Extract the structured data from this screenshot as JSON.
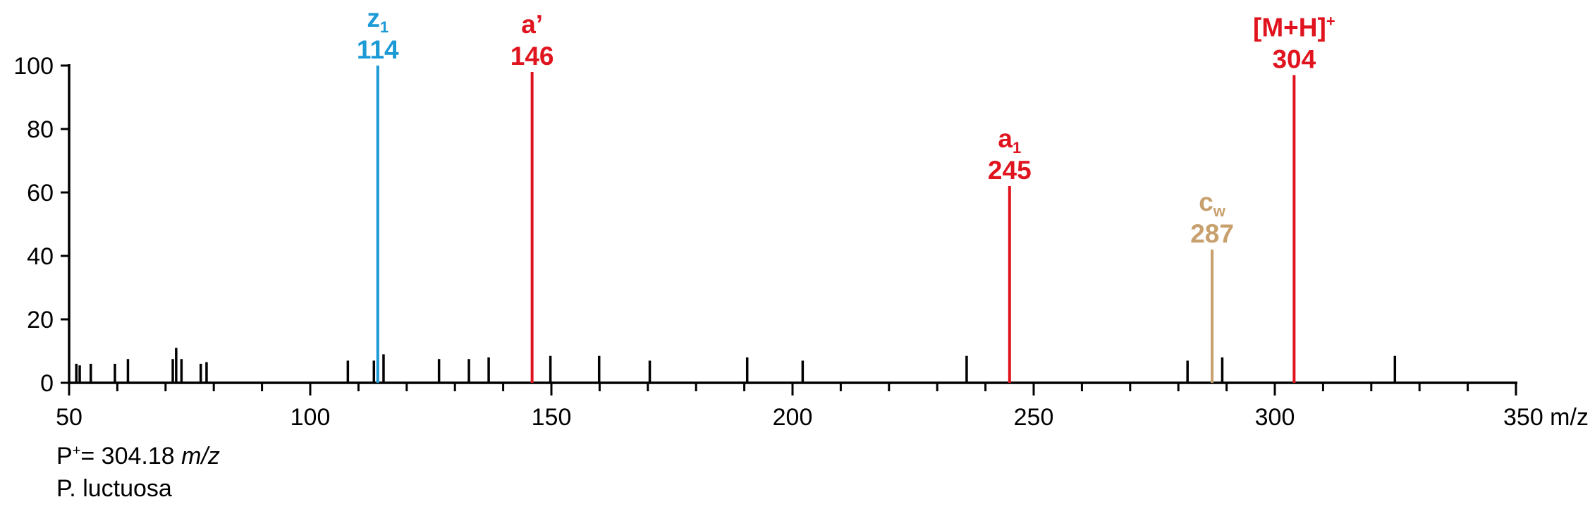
{
  "chart_data": {
    "type": "bar",
    "x_unit": "m/z",
    "xlim": [
      50,
      350
    ],
    "ylim": [
      0,
      100
    ],
    "x_ticks": [
      50,
      100,
      150,
      200,
      250,
      300,
      350
    ],
    "x_tick_labels": [
      "50",
      "100",
      "150",
      "200",
      "250",
      "300",
      "350 m/z"
    ],
    "y_ticks": [
      0,
      20,
      40,
      60,
      80,
      100
    ],
    "colors": {
      "default": "#000000",
      "z": "#1b9ad6",
      "a": "#e0141e",
      "c": "#c8a06e"
    },
    "minor_peaks": [
      {
        "mz": 51.5,
        "i": 6
      },
      {
        "mz": 52.2,
        "i": 5.5
      },
      {
        "mz": 54.5,
        "i": 6
      },
      {
        "mz": 59.5,
        "i": 6
      },
      {
        "mz": 62.2,
        "i": 7.5
      },
      {
        "mz": 71.5,
        "i": 7.5
      },
      {
        "mz": 72.2,
        "i": 11
      },
      {
        "mz": 73.3,
        "i": 7.5
      },
      {
        "mz": 77.3,
        "i": 6
      },
      {
        "mz": 78.5,
        "i": 6.5
      },
      {
        "mz": 107.8,
        "i": 7
      },
      {
        "mz": 113.2,
        "i": 7
      },
      {
        "mz": 115.2,
        "i": 9
      },
      {
        "mz": 126.7,
        "i": 7.5
      },
      {
        "mz": 132.9,
        "i": 7.5
      },
      {
        "mz": 137.0,
        "i": 8
      },
      {
        "mz": 149.8,
        "i": 8.5
      },
      {
        "mz": 159.9,
        "i": 8.5
      },
      {
        "mz": 170.4,
        "i": 7
      },
      {
        "mz": 190.6,
        "i": 8
      },
      {
        "mz": 202.1,
        "i": 7
      },
      {
        "mz": 236.1,
        "i": 8.5
      },
      {
        "mz": 281.9,
        "i": 7
      },
      {
        "mz": 289.1,
        "i": 8
      },
      {
        "mz": 324.9,
        "i": 8.5
      }
    ],
    "labeled_peaks": [
      {
        "mz": 114,
        "i": 100,
        "label": "z",
        "sub": "1",
        "sup": "",
        "value_label": "114",
        "color_key": "z"
      },
      {
        "mz": 146,
        "i": 98,
        "label": "a’",
        "sub": "",
        "sup": "",
        "value_label": "146",
        "color_key": "a"
      },
      {
        "mz": 245,
        "i": 62,
        "label": "a",
        "sub": "1",
        "sup": "",
        "value_label": "245",
        "color_key": "a"
      },
      {
        "mz": 287,
        "i": 42,
        "label": "c",
        "sub": "w",
        "sup": "",
        "value_label": "287",
        "color_key": "c"
      },
      {
        "mz": 304,
        "i": 97,
        "label": "[M+H]",
        "sub": "",
        "sup": "+",
        "value_label": "304",
        "color_key": "a"
      }
    ]
  },
  "footer": {
    "precursor_prefix": "P",
    "precursor_sup": "+",
    "precursor_value": "= 304.18 ",
    "precursor_unit": "m/z",
    "species": "P. luctuosa"
  }
}
